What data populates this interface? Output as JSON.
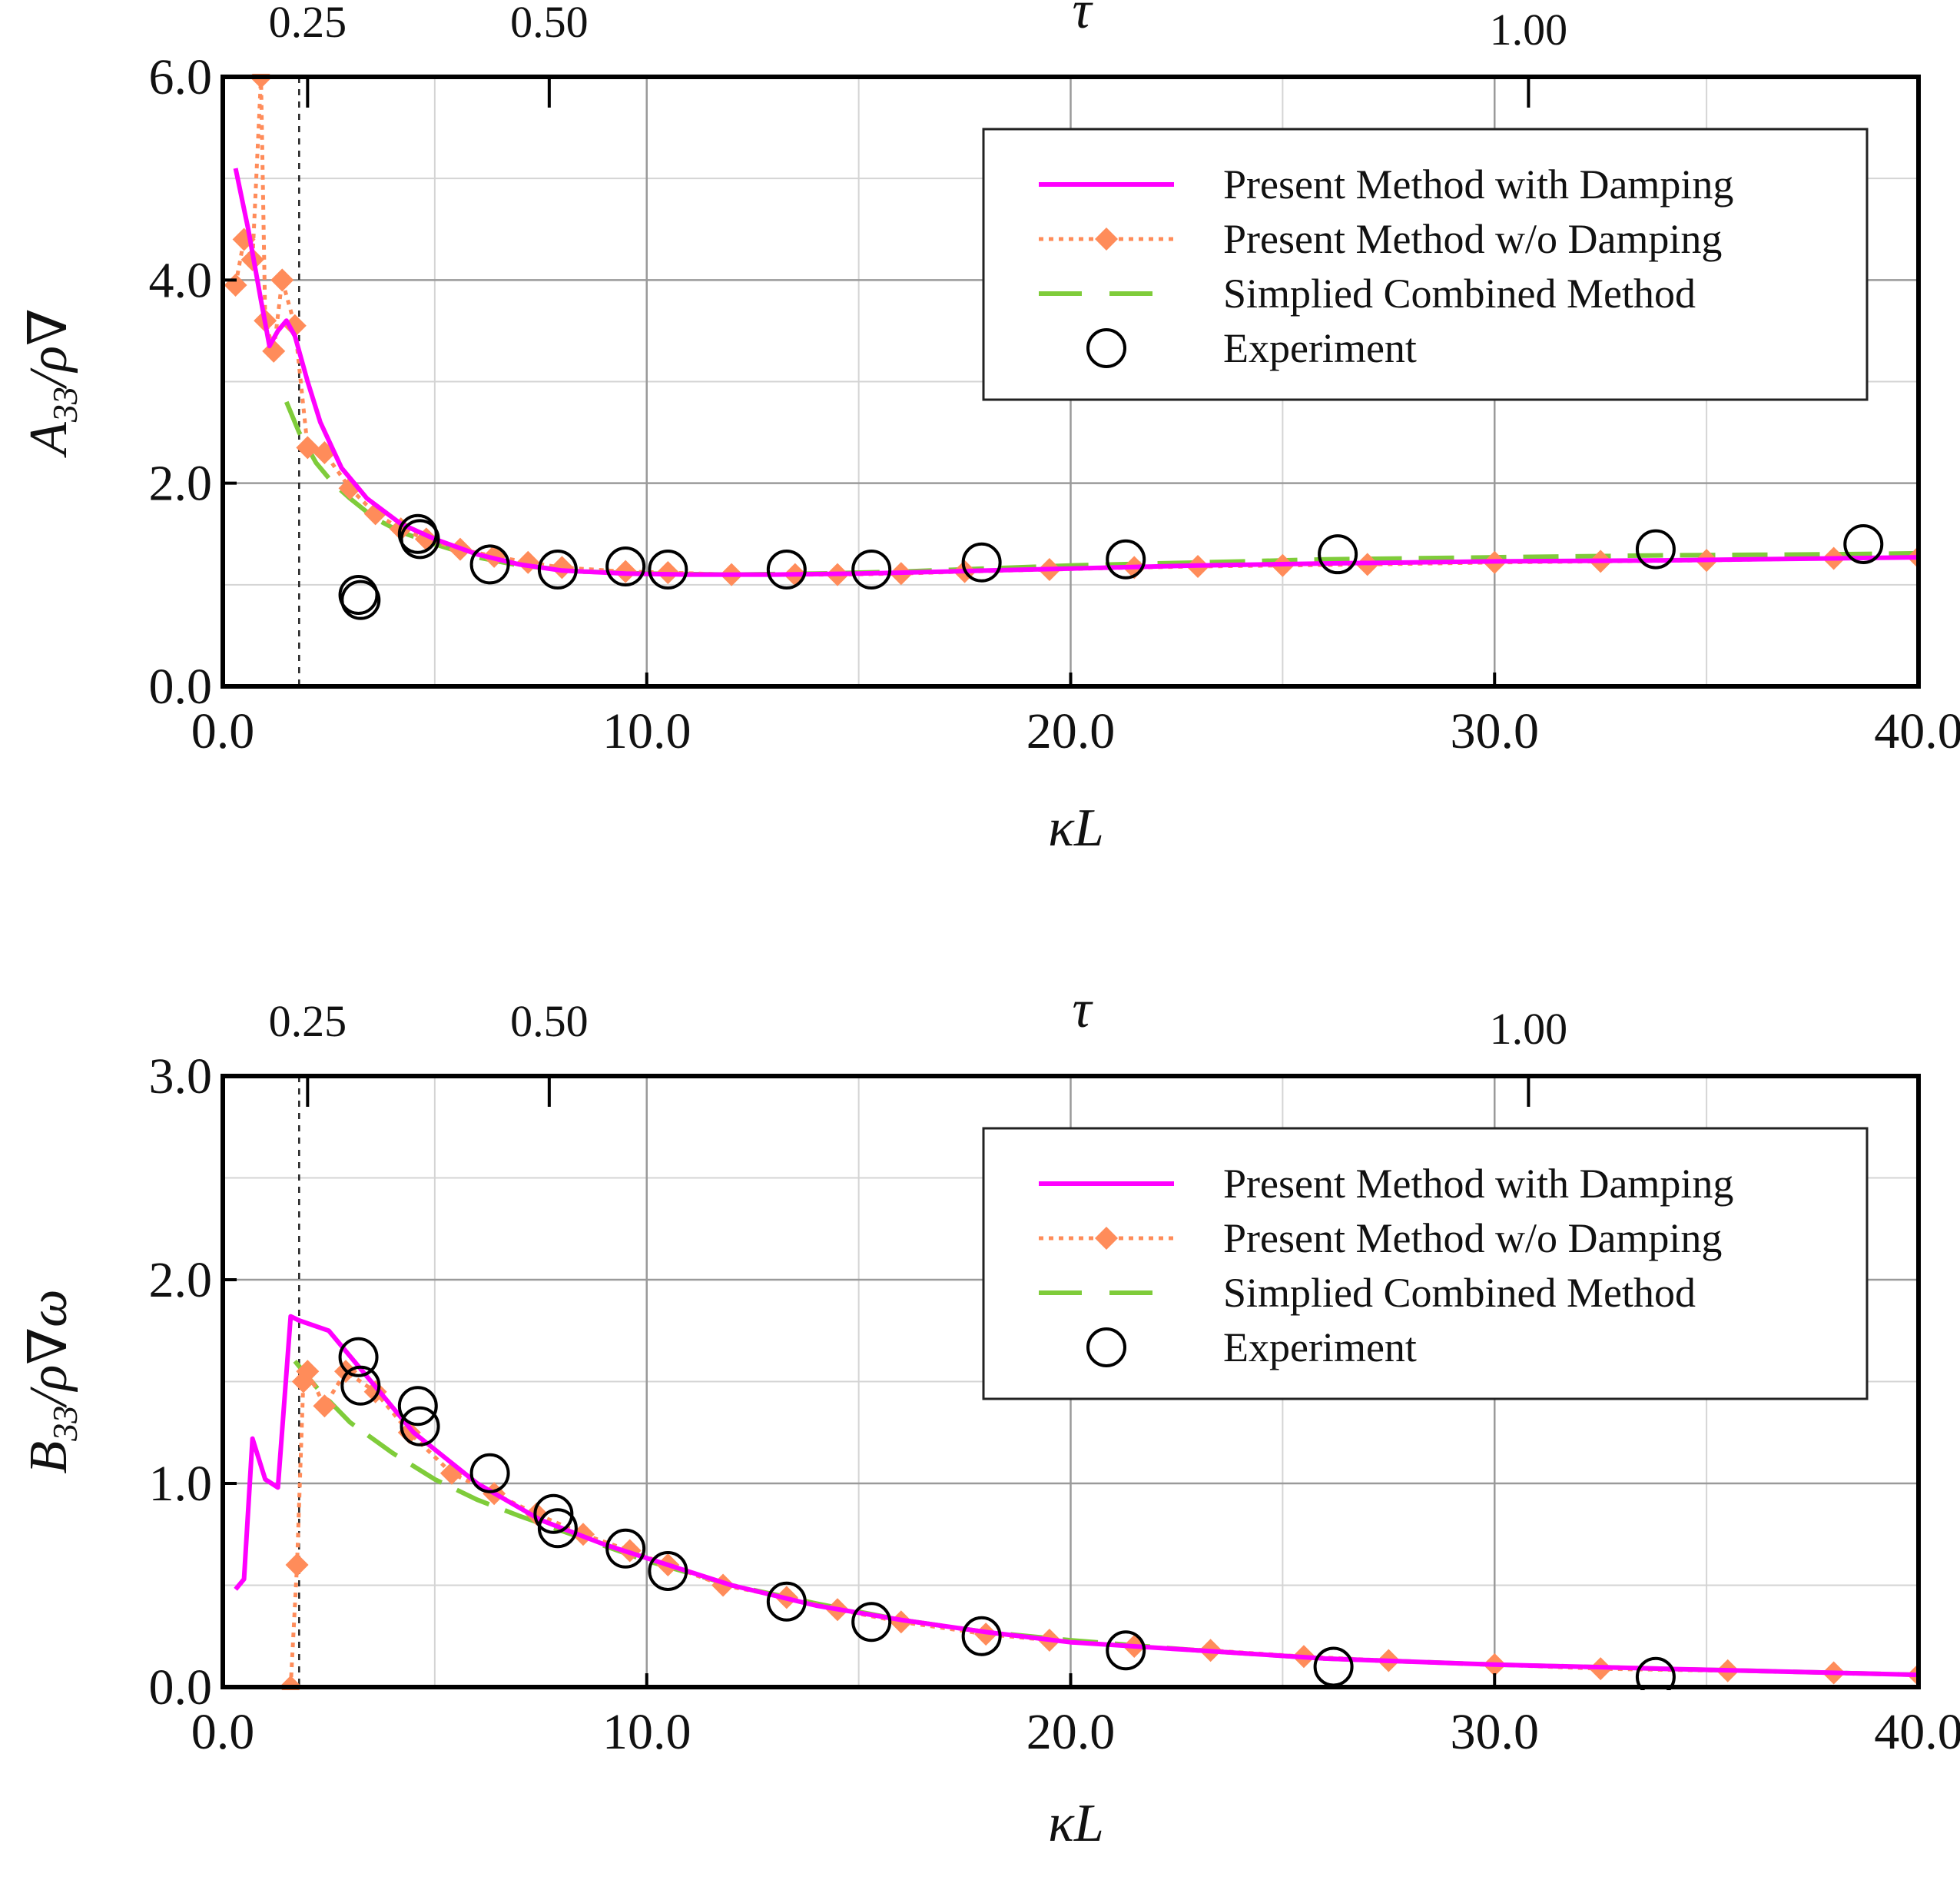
{
  "chart_data": [
    {
      "type": "line",
      "title": "",
      "xlabel": "κL",
      "ylabel": "A33/ρ∇",
      "top_axis_label": "τ",
      "top_ticks": [
        {
          "label": "0.25",
          "x": 2.0
        },
        {
          "label": "0.50",
          "x": 7.7
        },
        {
          "label": "1.00",
          "x": 30.8
        }
      ],
      "xlim": [
        0,
        40
      ],
      "ylim": [
        0,
        6
      ],
      "xticks": [
        0,
        10,
        20,
        30,
        40
      ],
      "xtick_labels": [
        "0.0",
        "10.0",
        "20.0",
        "30.0",
        "40.0"
      ],
      "yticks": [
        0,
        2,
        4,
        6
      ],
      "ytick_labels": [
        "0.0",
        "2.0",
        "4.0",
        "6.0"
      ],
      "minor_grid_x": [
        5,
        15,
        25,
        35
      ],
      "minor_grid_y": [
        1,
        3,
        5
      ],
      "reference_line_x": 1.8,
      "grid": true,
      "legend_position": "top-right",
      "series": [
        {
          "name": "Present Method with Damping",
          "style": "solid",
          "color": "#ff00ff",
          "x": [
            0.3,
            0.6,
            0.9,
            1.1,
            1.3,
            1.5,
            1.7,
            2.0,
            2.3,
            2.8,
            3.4,
            4.2,
            5.0,
            6.0,
            7.0,
            8.0,
            9.5,
            11.0,
            13.0,
            15.0,
            17.0,
            20.0,
            23.0,
            26.0,
            30.0,
            34.0,
            38.0,
            40.0
          ],
          "y": [
            5.1,
            4.5,
            3.8,
            3.35,
            3.5,
            3.6,
            3.45,
            3.0,
            2.6,
            2.15,
            1.85,
            1.6,
            1.45,
            1.3,
            1.2,
            1.14,
            1.11,
            1.1,
            1.1,
            1.11,
            1.13,
            1.16,
            1.19,
            1.21,
            1.23,
            1.24,
            1.26,
            1.27
          ]
        },
        {
          "name": "Present Method w/o Damping",
          "style": "dotted-diamond",
          "color": "#ff8c5a",
          "x": [
            0.3,
            0.5,
            0.7,
            0.9,
            1.0,
            1.2,
            1.4,
            1.7,
            2.0,
            2.4,
            3.0,
            3.6,
            4.2,
            4.8,
            5.6,
            6.4,
            7.2,
            8.0,
            9.5,
            10.5,
            12.0,
            13.5,
            14.5,
            16.0,
            17.5,
            19.5,
            21.5,
            23.0,
            25.0,
            27.0,
            30.0,
            32.5,
            35.0,
            38.0,
            40.0
          ],
          "y": [
            3.95,
            4.4,
            4.2,
            6.0,
            3.6,
            3.3,
            4.0,
            3.55,
            2.35,
            2.3,
            1.95,
            1.7,
            1.55,
            1.45,
            1.35,
            1.28,
            1.22,
            1.17,
            1.13,
            1.12,
            1.1,
            1.1,
            1.1,
            1.11,
            1.13,
            1.15,
            1.17,
            1.18,
            1.19,
            1.2,
            1.22,
            1.23,
            1.24,
            1.26,
            1.27
          ]
        },
        {
          "name": "Simplied Combined Method",
          "style": "dashed",
          "color": "#7fcc3a",
          "x": [
            1.5,
            1.8,
            2.2,
            2.6,
            3.0,
            3.6,
            4.2,
            5.0,
            6.0,
            7.0,
            8.5,
            10.0,
            12.0,
            14.0,
            16.0,
            18.0,
            20.0,
            23.0,
            26.0,
            30.0,
            34.0,
            38.0,
            40.0
          ],
          "y": [
            2.8,
            2.5,
            2.2,
            2.0,
            1.85,
            1.65,
            1.52,
            1.4,
            1.27,
            1.19,
            1.13,
            1.11,
            1.1,
            1.11,
            1.13,
            1.16,
            1.19,
            1.22,
            1.25,
            1.27,
            1.29,
            1.3,
            1.31
          ]
        },
        {
          "name": "Experiment",
          "style": "open-circle",
          "color": "#000000",
          "x": [
            3.2,
            3.25,
            4.6,
            4.65,
            6.3,
            7.9,
            9.5,
            10.5,
            13.3,
            15.3,
            17.9,
            21.3,
            26.3,
            33.8,
            38.7
          ],
          "y": [
            0.9,
            0.85,
            1.5,
            1.45,
            1.2,
            1.15,
            1.18,
            1.15,
            1.15,
            1.15,
            1.22,
            1.25,
            1.3,
            1.35,
            1.4
          ]
        }
      ]
    },
    {
      "type": "line",
      "title": "",
      "xlabel": "κL",
      "ylabel": "B33/ρ∇ω",
      "top_axis_label": "τ",
      "top_ticks": [
        {
          "label": "0.25",
          "x": 2.0
        },
        {
          "label": "0.50",
          "x": 7.7
        },
        {
          "label": "1.00",
          "x": 30.8
        }
      ],
      "xlim": [
        0,
        40
      ],
      "ylim": [
        0,
        3
      ],
      "xticks": [
        0,
        10,
        20,
        30,
        40
      ],
      "xtick_labels": [
        "0.0",
        "10.0",
        "20.0",
        "30.0",
        "40.0"
      ],
      "yticks": [
        0,
        1,
        2,
        3
      ],
      "ytick_labels": [
        "0.0",
        "1.0",
        "2.0",
        "3.0"
      ],
      "minor_grid_x": [
        5,
        15,
        25,
        35
      ],
      "minor_grid_y": [
        0.5,
        1.5,
        2.5
      ],
      "reference_line_x": 1.8,
      "grid": true,
      "legend_position": "top-right",
      "series": [
        {
          "name": "Present Method with Damping",
          "style": "solid",
          "color": "#ff00ff",
          "x": [
            0.3,
            0.5,
            0.7,
            1.0,
            1.3,
            1.6,
            1.8,
            2.5,
            3.5,
            4.5,
            6.0,
            7.5,
            9.0,
            10.5,
            12.0,
            14.0,
            16.0,
            18.0,
            20.0,
            23.0,
            26.0,
            30.0,
            34.0,
            38.0,
            40.0
          ],
          "y": [
            0.48,
            0.53,
            1.22,
            1.02,
            0.98,
            1.82,
            1.8,
            1.75,
            1.5,
            1.25,
            1.0,
            0.82,
            0.7,
            0.6,
            0.5,
            0.4,
            0.33,
            0.27,
            0.22,
            0.18,
            0.14,
            0.11,
            0.09,
            0.07,
            0.06
          ]
        },
        {
          "name": "Present Method w/o Damping",
          "style": "dotted-diamond",
          "color": "#ff8c5a",
          "x": [
            1.6,
            1.75,
            1.9,
            2.0,
            2.4,
            2.9,
            3.6,
            4.4,
            5.4,
            6.4,
            7.4,
            8.5,
            9.6,
            10.5,
            11.8,
            13.3,
            14.5,
            16.0,
            18.0,
            19.5,
            21.5,
            23.3,
            25.5,
            27.5,
            30.0,
            32.5,
            35.5,
            38.0,
            40.0
          ],
          "y": [
            0.0,
            0.6,
            1.5,
            1.55,
            1.38,
            1.55,
            1.45,
            1.25,
            1.05,
            0.95,
            0.85,
            0.75,
            0.67,
            0.6,
            0.5,
            0.44,
            0.38,
            0.32,
            0.26,
            0.23,
            0.2,
            0.18,
            0.15,
            0.13,
            0.11,
            0.09,
            0.08,
            0.07,
            0.06
          ]
        },
        {
          "name": "Simplied Combined Method",
          "style": "dashed",
          "color": "#7fcc3a",
          "x": [
            1.7,
            2.3,
            3.0,
            4.0,
            5.0,
            6.0,
            7.0,
            8.5,
            10.0,
            12.0,
            14.0,
            16.0,
            18.0,
            20.0,
            23.0,
            26.0,
            30.0,
            34.0,
            38.0,
            40.0
          ],
          "y": [
            1.6,
            1.45,
            1.3,
            1.15,
            1.02,
            0.92,
            0.84,
            0.73,
            0.62,
            0.5,
            0.41,
            0.33,
            0.27,
            0.23,
            0.18,
            0.14,
            0.11,
            0.09,
            0.07,
            0.06
          ]
        },
        {
          "name": "Experiment",
          "style": "open-circle",
          "color": "#000000",
          "x": [
            3.2,
            3.25,
            4.6,
            4.65,
            6.3,
            7.8,
            7.9,
            9.5,
            10.5,
            13.3,
            15.3,
            17.9,
            21.3,
            26.2,
            33.8
          ],
          "y": [
            1.62,
            1.48,
            1.38,
            1.28,
            1.05,
            0.85,
            0.78,
            0.68,
            0.57,
            0.42,
            0.32,
            0.25,
            0.18,
            0.1,
            0.05
          ]
        }
      ]
    }
  ]
}
